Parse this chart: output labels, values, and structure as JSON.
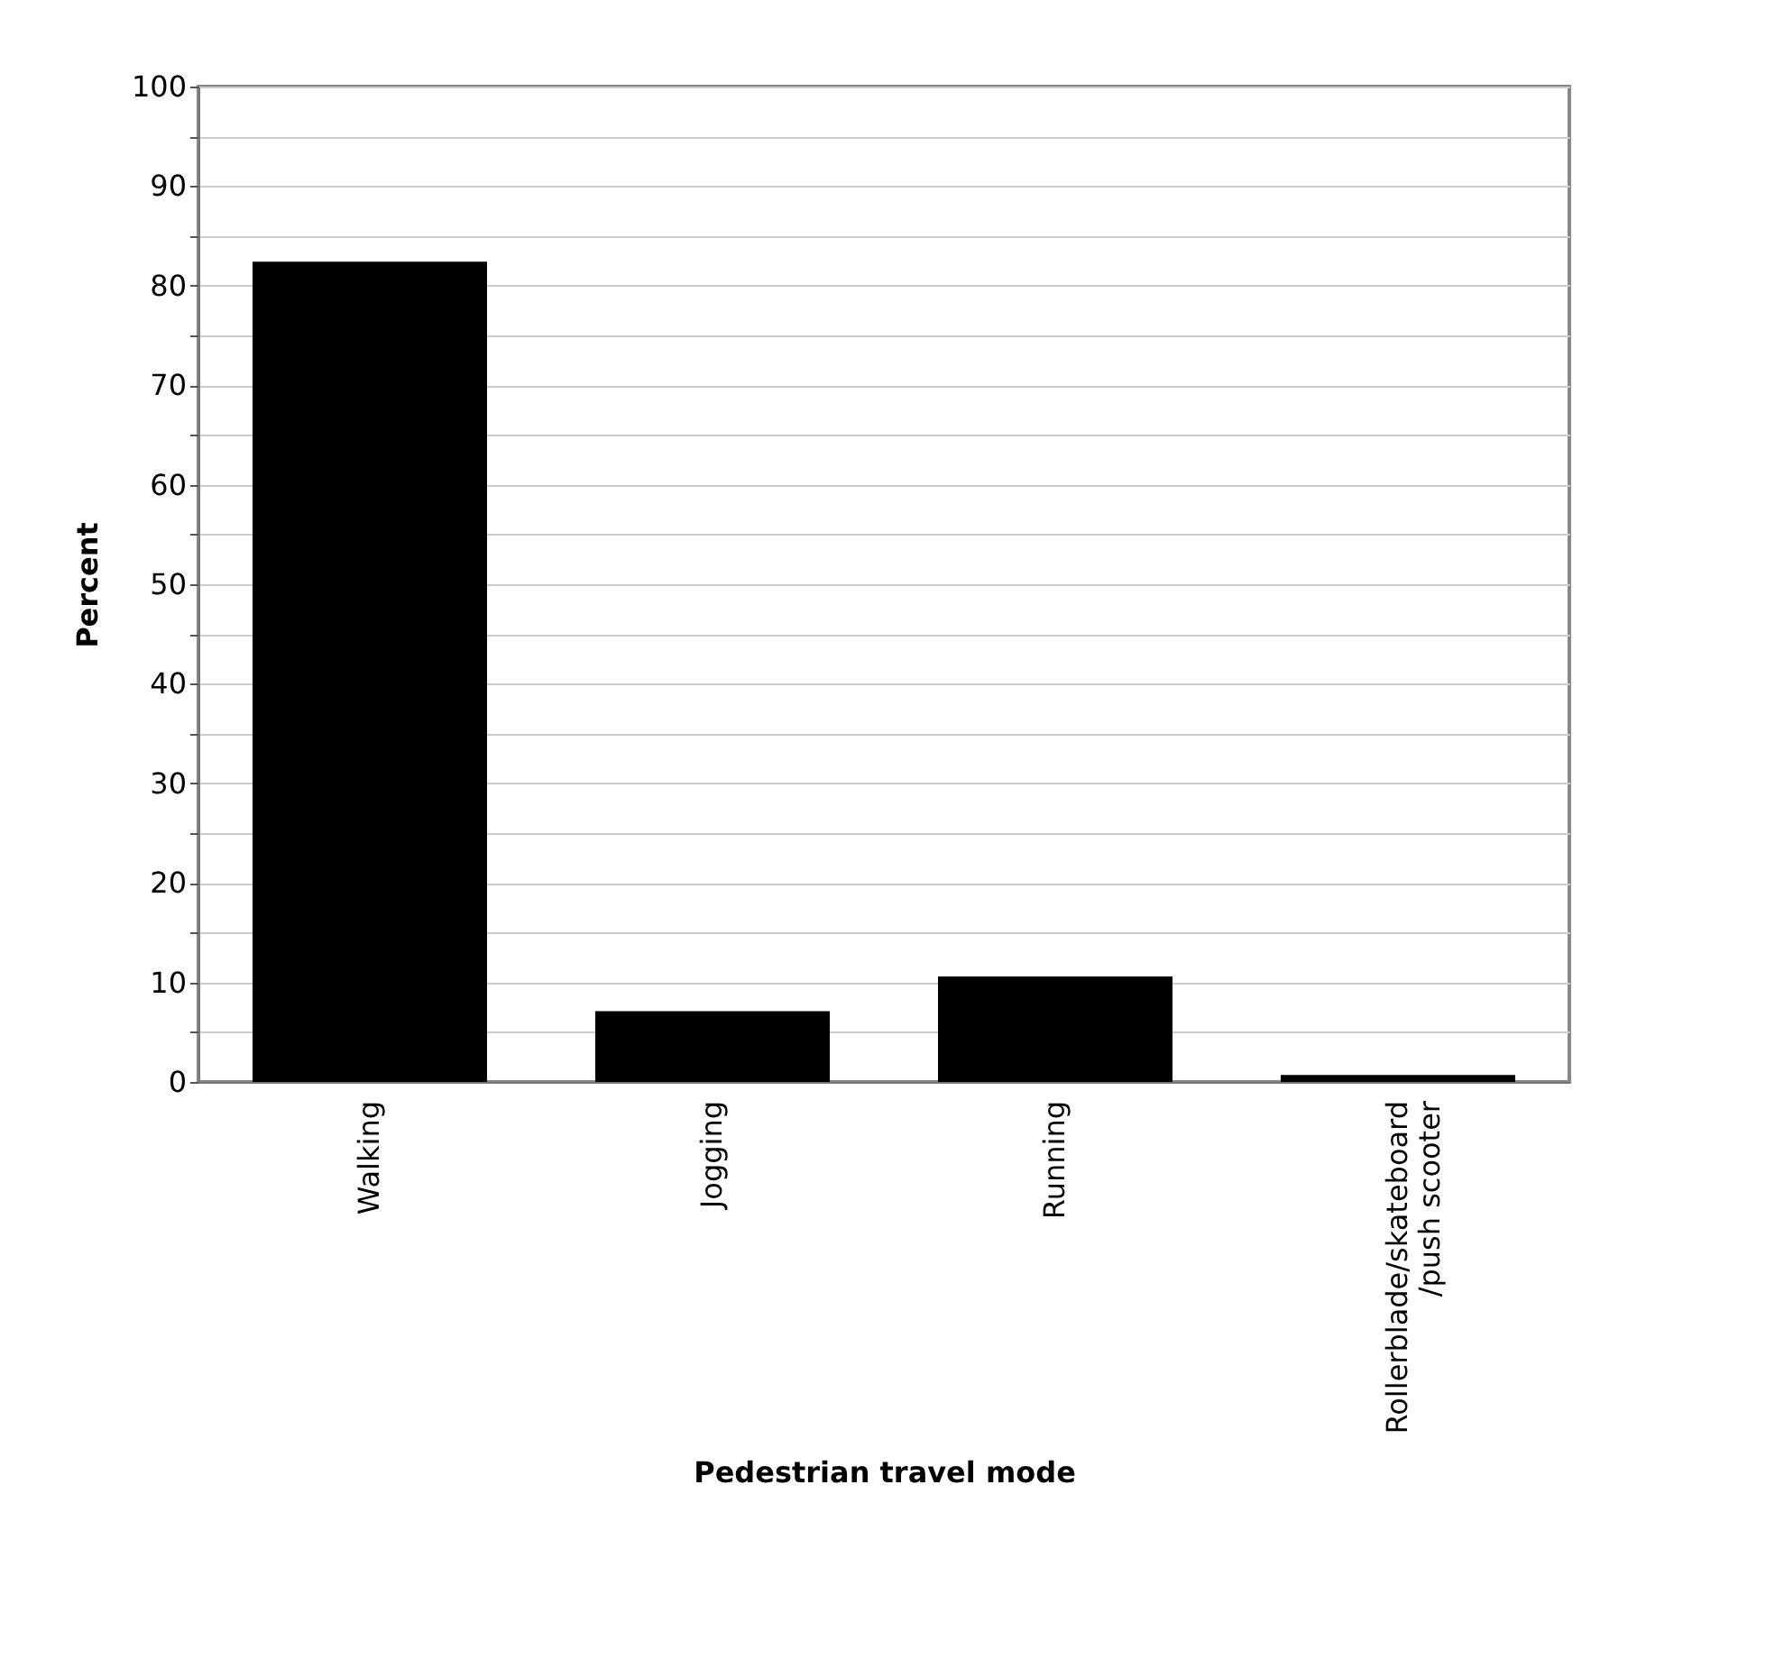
{
  "chart_data": {
    "type": "bar",
    "xlabel": "Pedestrian travel mode",
    "ylabel": "Percent",
    "categories": [
      "Walking",
      "Jogging",
      "Running",
      "Rollerblade/skateboard\n/push scooter"
    ],
    "values": [
      82.4,
      7.1,
      10.6,
      0.7
    ],
    "color": "#000000",
    "ylim": [
      0,
      100
    ],
    "yticks": [
      0,
      {
        "value": 5,
        "label": null
      },
      10,
      {
        "value": 15,
        "label": null
      },
      20,
      {
        "value": 25,
        "label": null
      },
      30,
      {
        "value": 35,
        "label": null
      },
      40,
      {
        "value": 45,
        "label": null
      },
      50,
      {
        "value": 55,
        "label": null
      },
      60,
      {
        "value": 65,
        "label": null
      },
      70,
      {
        "value": 75,
        "label": null
      },
      80,
      {
        "value": 85,
        "label": null
      },
      90,
      {
        "value": 95,
        "label": null
      },
      100
    ],
    "grid": "y"
  }
}
